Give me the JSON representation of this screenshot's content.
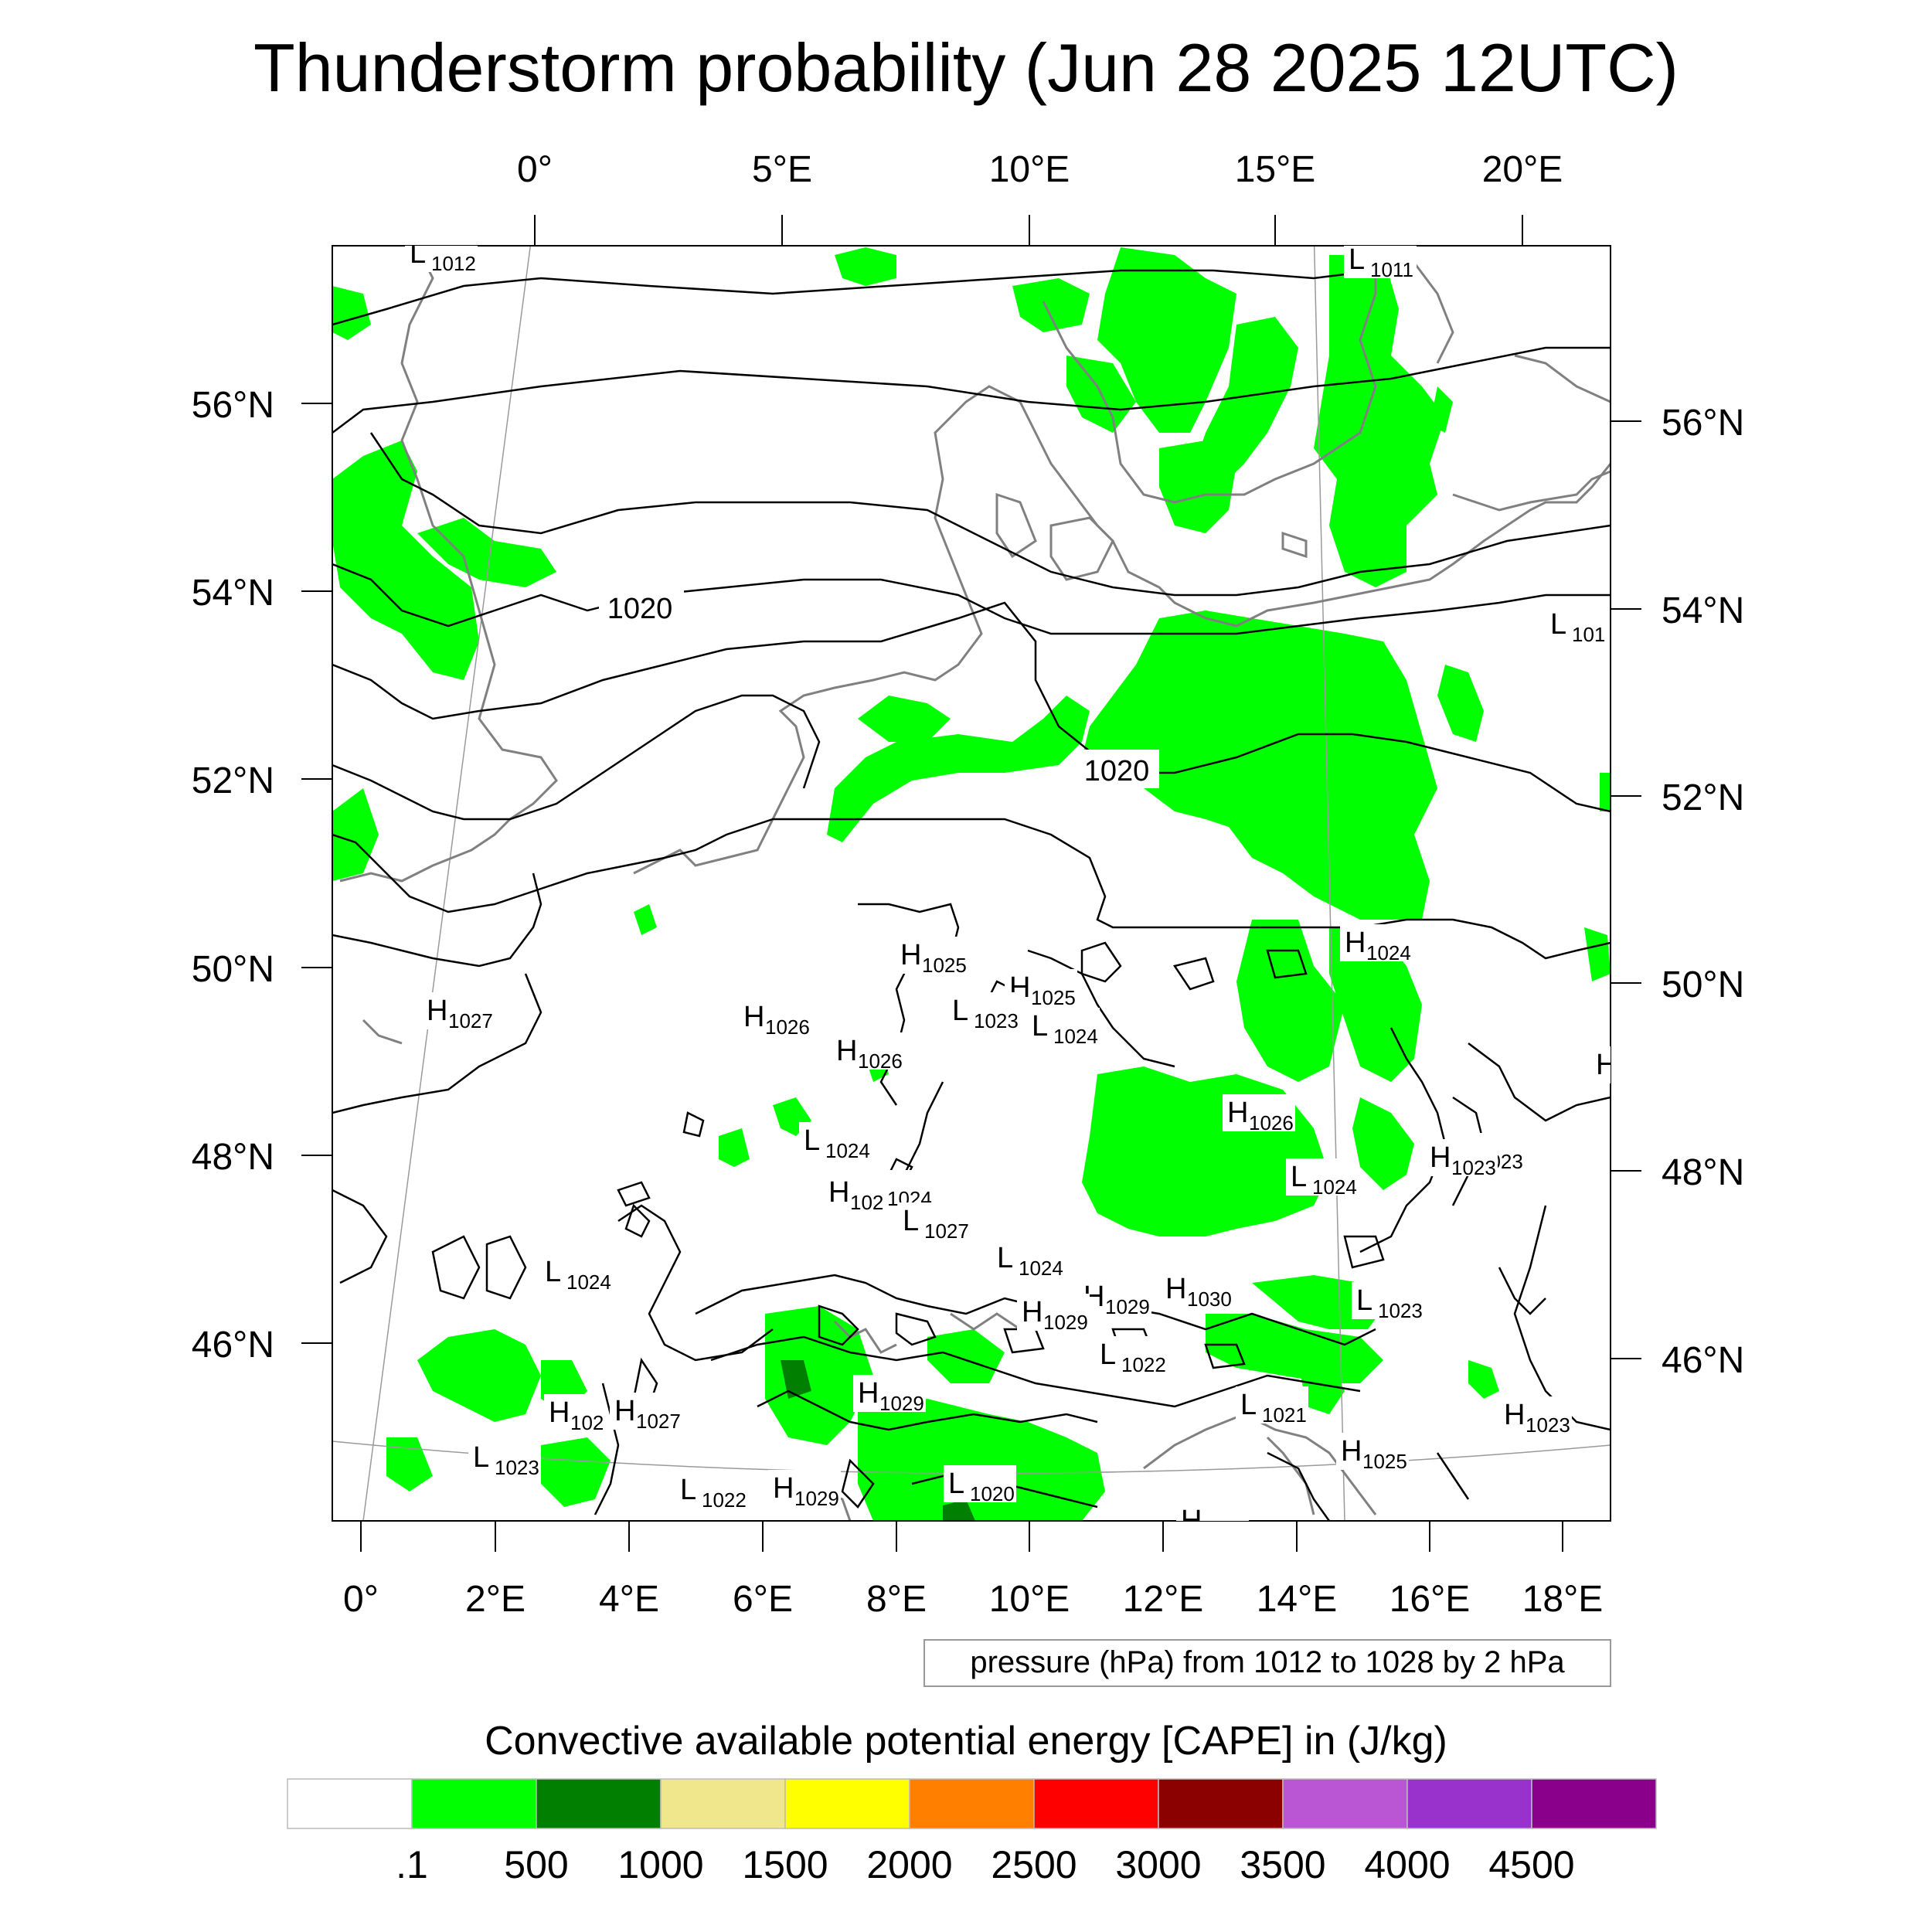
{
  "title": "Thunderstorm probability (Jun 28 2025 12UTC)",
  "top_lon_labels": [
    "0°",
    "5°E",
    "10°E",
    "15°E",
    "20°E"
  ],
  "bottom_lon_labels": [
    "0°",
    "2°E",
    "4°E",
    "6°E",
    "8°E",
    "10°E",
    "12°E",
    "14°E",
    "16°E",
    "18°E"
  ],
  "left_lat_labels": [
    "56°N",
    "54°N",
    "52°N",
    "50°N",
    "48°N",
    "46°N"
  ],
  "right_lat_labels": [
    "56°N",
    "54°N",
    "52°N",
    "50°N",
    "48°N",
    "46°N"
  ],
  "contour_labels": [
    "1020",
    "1020"
  ],
  "pressure_centers": [
    {
      "type": "L",
      "value": "1012"
    },
    {
      "type": "L",
      "value": "1011"
    },
    {
      "type": "L",
      "value": "101"
    },
    {
      "type": "H",
      "value": "1024"
    },
    {
      "type": "H",
      "value": "1025"
    },
    {
      "type": "H",
      "value": "1025"
    },
    {
      "type": "H",
      "value": "1027"
    },
    {
      "type": "L",
      "value": "1023"
    },
    {
      "type": "L",
      "value": "1024"
    },
    {
      "type": "H",
      "value": "1026"
    },
    {
      "type": "H",
      "value": "1026"
    },
    {
      "type": "H",
      "value": "1026"
    },
    {
      "type": "L",
      "value": "1024"
    },
    {
      "type": "H",
      "value": "1023"
    },
    {
      "type": "L",
      "value": "1024"
    },
    {
      "type": "L",
      "value": "1024"
    },
    {
      "type": "H",
      "value": "102"
    },
    {
      "type": "L",
      "value": "1027"
    },
    {
      "type": "H",
      "value": "1023"
    },
    {
      "type": "L",
      "value": "1024"
    },
    {
      "type": "H",
      "value": "1026"
    },
    {
      "type": "L",
      "value": "1024"
    },
    {
      "type": "H",
      "value": "1029"
    },
    {
      "type": "H",
      "value": "1030"
    },
    {
      "type": "L",
      "value": "1023"
    },
    {
      "type": "H",
      "value": "1029"
    },
    {
      "type": "L",
      "value": "1022"
    },
    {
      "type": "H",
      "value": "1029"
    },
    {
      "type": "L",
      "value": "1021"
    },
    {
      "type": "H",
      "value": "1023"
    },
    {
      "type": "H",
      "value": "102"
    },
    {
      "type": "H",
      "value": "1027"
    },
    {
      "type": "H",
      "value": "1025"
    },
    {
      "type": "L",
      "value": "1023"
    },
    {
      "type": "L",
      "value": "1022"
    },
    {
      "type": "H",
      "value": "1029"
    },
    {
      "type": "L",
      "value": "1020"
    },
    {
      "type": "H",
      "value": "1029"
    }
  ],
  "pressure_caption": "pressure (hPa) from 1012 to 1028 by 2 hPa",
  "colorbar": {
    "title": "Convective available potential energy [CAPE] in (J/kg)",
    "colors": [
      "#ffffff",
      "#00ff00",
      "#007f00",
      "#f0e68c",
      "#ffff00",
      "#ff8000",
      "#ff0000",
      "#8b0000",
      "#ba55d3",
      "#9932cc",
      "#8b008b"
    ],
    "labels": [
      ".1",
      "500",
      "1000",
      "1500",
      "2000",
      "2500",
      "3000",
      "3500",
      "4000",
      "4500"
    ]
  },
  "colors": {
    "cape_low": "#00ff00",
    "cape_mid": "#007f00",
    "coastline": "#808080",
    "isobar": "#000000"
  }
}
